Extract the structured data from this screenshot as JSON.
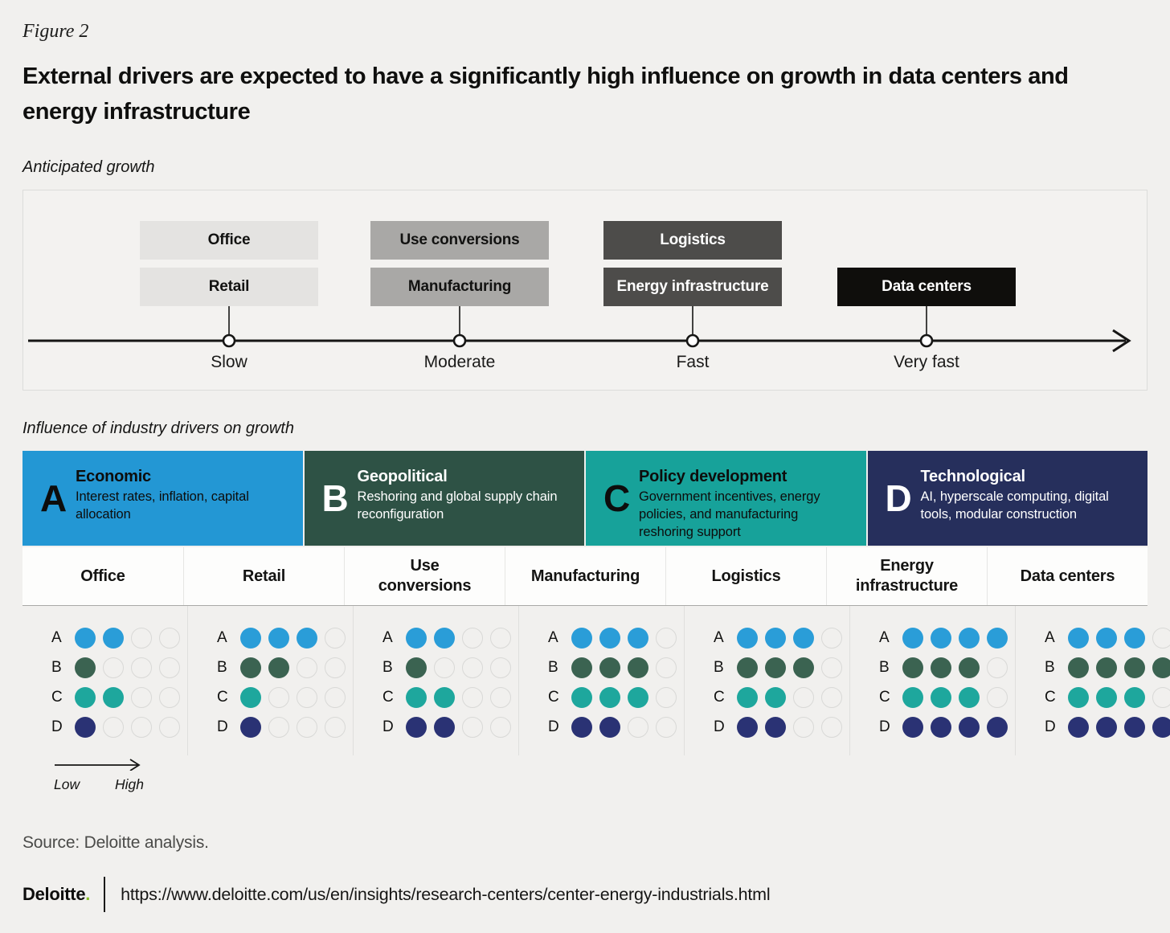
{
  "page": {
    "figure_label": "Figure 2",
    "title": "External drivers are expected to have a significantly high influence on growth in data centers and energy infrastructure",
    "source": "Source: Deloitte analysis.",
    "footer": {
      "brand": "Deloitte",
      "brand_dot": ".",
      "url": "https://www.deloitte.com/us/en/insights/research-centers/center-energy-industrials.html"
    }
  },
  "timeline": {
    "section_label": "Anticipated growth",
    "groups": [
      {
        "speed": "Slow",
        "shade": "light",
        "boxes": [
          "Office",
          "Retail"
        ]
      },
      {
        "speed": "Moderate",
        "shade": "medium",
        "boxes": [
          "Use conversions",
          "Manufacturing"
        ]
      },
      {
        "speed": "Fast",
        "shade": "dark",
        "boxes": [
          "Logistics",
          "Energy infrastructure"
        ]
      },
      {
        "speed": "Very fast",
        "shade": "black",
        "boxes": [
          "Data centers"
        ]
      }
    ]
  },
  "drivers": {
    "section_label": "Influence of industry drivers on growth",
    "cards": [
      {
        "key": "A",
        "title": "Economic",
        "description": "Interest rates, inflation, capital allocation",
        "bg": "#2397d4",
        "fg": "#0d0d0c"
      },
      {
        "key": "B",
        "title": "Geopolitical",
        "description": "Reshoring and global supply chain reconfiguration",
        "bg": "#2e5245",
        "fg": "#ffffff"
      },
      {
        "key": "C",
        "title": "Policy development",
        "description": "Government incentives, energy policies, and manufacturing reshoring support",
        "bg": "#17a29a",
        "fg": "#0d0d0c"
      },
      {
        "key": "D",
        "title": "Technological",
        "description": "AI, hyperscale computing, digital tools, modular construction",
        "bg": "#262f5c",
        "fg": "#ffffff"
      }
    ],
    "dot_colors": {
      "A": "#2a9dd8",
      "B": "#3b6351",
      "C": "#1ea79d",
      "D": "#2a3274"
    },
    "legend": {
      "low": "Low",
      "high": "High"
    }
  },
  "matrix": {
    "columns": [
      "Office",
      "Retail",
      "Use conversions",
      "Manufacturing",
      "Logistics",
      "Energy infrastructure",
      "Data centers"
    ],
    "driver_keys": [
      "A",
      "B",
      "C",
      "D"
    ],
    "max_dots": 4,
    "ratings": [
      {
        "column": "Office",
        "A": 2,
        "B": 1,
        "C": 2,
        "D": 1
      },
      {
        "column": "Retail",
        "A": 3,
        "B": 2,
        "C": 1,
        "D": 1
      },
      {
        "column": "Use conversions",
        "A": 2,
        "B": 1,
        "C": 2,
        "D": 2
      },
      {
        "column": "Manufacturing",
        "A": 3,
        "B": 3,
        "C": 3,
        "D": 2
      },
      {
        "column": "Logistics",
        "A": 3,
        "B": 3,
        "C": 2,
        "D": 2
      },
      {
        "column": "Energy infrastructure",
        "A": 4,
        "B": 3,
        "C": 3,
        "D": 4
      },
      {
        "column": "Data centers",
        "A": 3,
        "B": 4,
        "C": 3,
        "D": 4
      }
    ]
  },
  "chart_data": [
    {
      "type": "line",
      "subtype": "timeline",
      "title": "Anticipated growth",
      "x_categories": [
        "Slow",
        "Moderate",
        "Fast",
        "Very fast"
      ],
      "items": [
        {
          "label": "Office",
          "growth": "Slow"
        },
        {
          "label": "Retail",
          "growth": "Slow"
        },
        {
          "label": "Use conversions",
          "growth": "Moderate"
        },
        {
          "label": "Manufacturing",
          "growth": "Moderate"
        },
        {
          "label": "Logistics",
          "growth": "Fast"
        },
        {
          "label": "Energy infrastructure",
          "growth": "Fast"
        },
        {
          "label": "Data centers",
          "growth": "Very fast"
        }
      ]
    },
    {
      "type": "heatmap",
      "subtype": "dot-matrix",
      "title": "Influence of industry drivers on growth",
      "value_scale": {
        "min": 0,
        "max": 4,
        "low_label": "Low",
        "high_label": "High"
      },
      "categories": [
        "Office",
        "Retail",
        "Use conversions",
        "Manufacturing",
        "Logistics",
        "Energy infrastructure",
        "Data centers"
      ],
      "series": [
        {
          "name": "A — Economic",
          "values": [
            2,
            3,
            2,
            3,
            3,
            4,
            3
          ]
        },
        {
          "name": "B — Geopolitical",
          "values": [
            1,
            2,
            1,
            3,
            3,
            3,
            4
          ]
        },
        {
          "name": "C — Policy development",
          "values": [
            2,
            1,
            2,
            3,
            2,
            3,
            3
          ]
        },
        {
          "name": "D — Technological",
          "values": [
            1,
            1,
            2,
            2,
            2,
            4,
            4
          ]
        }
      ]
    }
  ]
}
